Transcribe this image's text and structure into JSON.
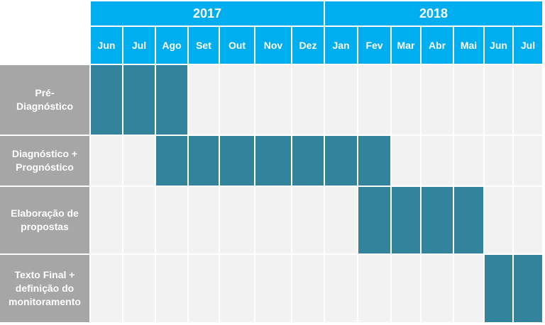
{
  "chart_data": {
    "type": "gantt",
    "years": [
      {
        "label": "2017",
        "months": 7
      },
      {
        "label": "2018",
        "months": 7
      }
    ],
    "months": [
      "Jun",
      "Jul",
      "Ago",
      "Set",
      "Out",
      "Nov",
      "Dez",
      "Jan",
      "Fev",
      "Mar",
      "Abr",
      "Mai",
      "Jun",
      "Jul"
    ],
    "tasks": [
      {
        "label": "Pré-\nDiagnóstico",
        "start_month_index": 0,
        "end_month_index": 2
      },
      {
        "label": "Diagnóstico +\nPrognóstico",
        "start_month_index": 2,
        "end_month_index": 8
      },
      {
        "label": "Elaboração de\npropostas",
        "start_month_index": 8,
        "end_month_index": 11
      },
      {
        "label": "Texto Final +\ndefinição do\nmonitoramento",
        "start_month_index": 12,
        "end_month_index": 13
      }
    ]
  },
  "colors": {
    "header": "#00aeef",
    "bar": "#31849b",
    "grid": "#f2f2f2",
    "task_label_bg": "#a6a6a6",
    "text_on_color": "#ffffff"
  }
}
